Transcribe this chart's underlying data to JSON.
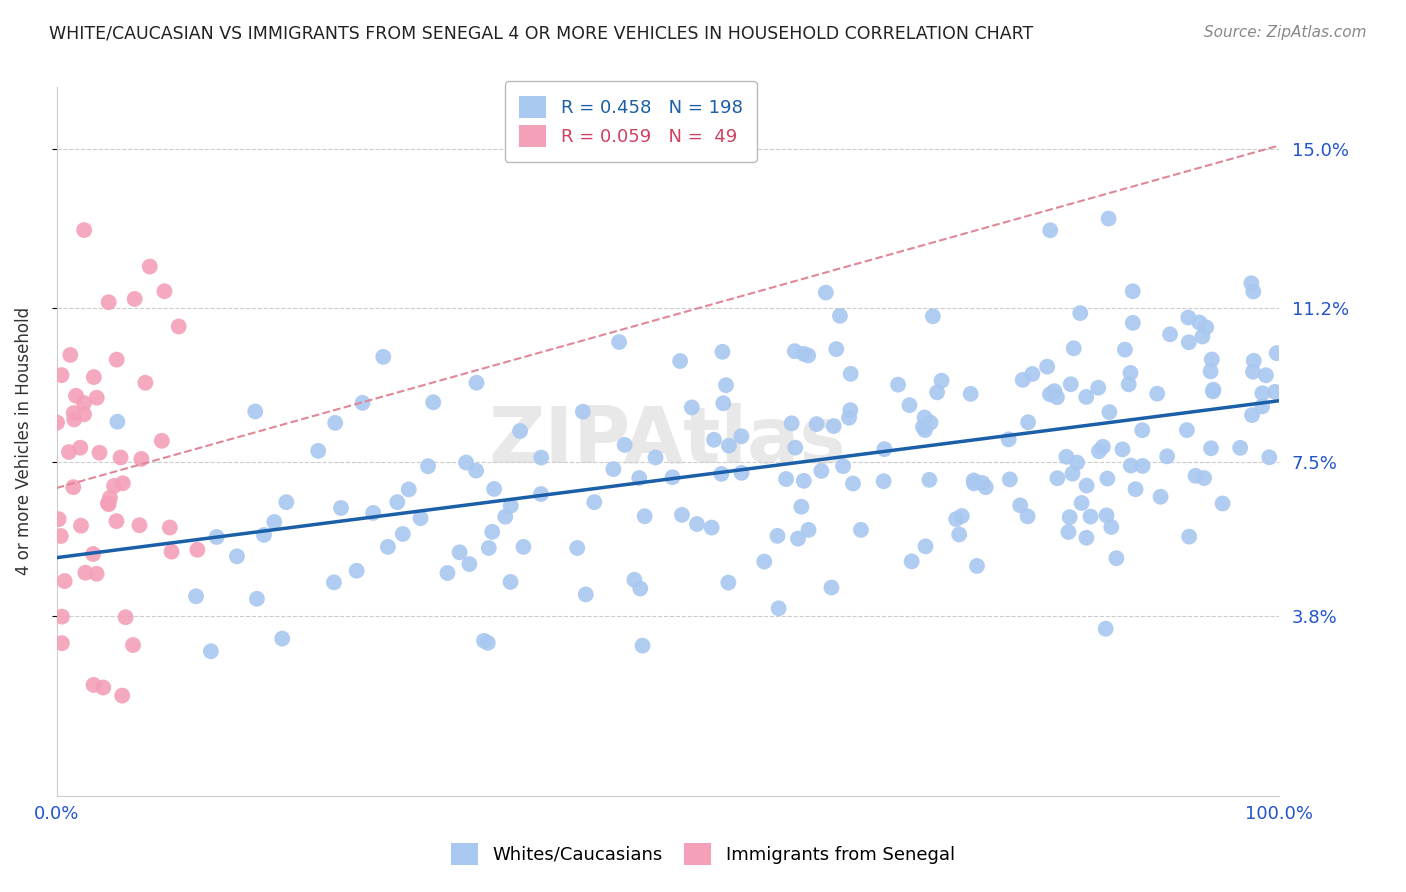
{
  "title": "WHITE/CAUCASIAN VS IMMIGRANTS FROM SENEGAL 4 OR MORE VEHICLES IN HOUSEHOLD CORRELATION CHART",
  "source": "Source: ZipAtlas.com",
  "ylabel": "4 or more Vehicles in Household",
  "xlim": [
    0,
    100
  ],
  "ylim": [
    -0.5,
    16.5
  ],
  "yticks": [
    3.8,
    7.5,
    11.2,
    15.0
  ],
  "ytick_labels": [
    "3.8%",
    "7.5%",
    "11.2%",
    "15.0%"
  ],
  "blue_R": 0.458,
  "blue_N": 198,
  "pink_R": 0.059,
  "pink_N": 49,
  "blue_color": "#a8c8f0",
  "blue_line_color": "#1a5fa8",
  "pink_color": "#f4a0b8",
  "pink_line_color": "#d04060",
  "pink_dash_color": "#e08898",
  "label_blue": "Whites/Caucasians",
  "label_pink": "Immigrants from Senegal",
  "title_color": "#222222",
  "axis_label_color": "#2255cc",
  "grid_color": "#cccccc",
  "background_color": "#ffffff"
}
